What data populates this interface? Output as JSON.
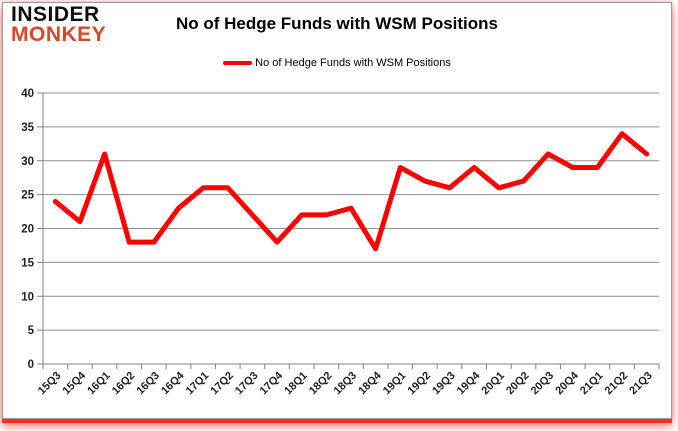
{
  "brand": {
    "line1": "INSIDER",
    "line2": "MONKEY"
  },
  "header": {
    "title": "No of Hedge Funds with WSM Positions"
  },
  "legend": {
    "label": "No of Hedge Funds with WSM Positions"
  },
  "chart_data": {
    "type": "line",
    "title": "No of Hedge Funds with WSM Positions",
    "categories": [
      "15Q3",
      "15Q4",
      "16Q1",
      "16Q2",
      "16Q3",
      "16Q4",
      "17Q1",
      "17Q2",
      "17Q3",
      "17Q4",
      "18Q1",
      "18Q2",
      "18Q3",
      "18Q4",
      "19Q1",
      "19Q2",
      "19Q3",
      "19Q4",
      "20Q1",
      "20Q2",
      "20Q3",
      "20Q4",
      "21Q1",
      "21Q2",
      "21Q3"
    ],
    "series": [
      {
        "name": "No of Hedge Funds with WSM Positions",
        "color": "#ff0000",
        "values": [
          24,
          21,
          31,
          18,
          18,
          23,
          26,
          26,
          22,
          18,
          22,
          22,
          23,
          17,
          29,
          27,
          26,
          29,
          26,
          27,
          31,
          29,
          29,
          34,
          31
        ]
      }
    ],
    "xlabel": "",
    "ylabel": "",
    "ylim": [
      0,
      40
    ],
    "yticks": [
      0,
      5,
      10,
      15,
      20,
      25,
      30,
      35,
      40
    ],
    "grid": true,
    "legend_position": "top-center"
  },
  "colors": {
    "series_red": "#ff0000",
    "logo_red": "#d9472b",
    "logo_black": "#0d0d0d",
    "grid": "#8f8f8f",
    "axis": "#7f7f7f",
    "tick_text": "#1f1f1f",
    "title_text": "#000000"
  }
}
